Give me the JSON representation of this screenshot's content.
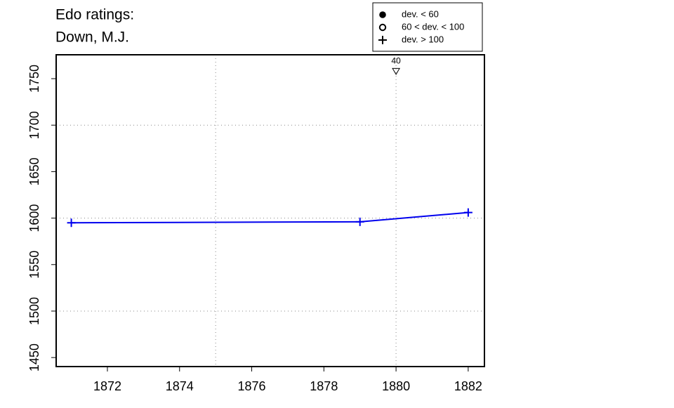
{
  "chart_data": {
    "type": "line",
    "title": "Edo ratings:",
    "subtitle": "Down, M.J.",
    "x": [
      1871,
      1879,
      1882
    ],
    "series": [
      {
        "color": "#0000ee",
        "marker": "plus",
        "values": [
          1595,
          1596,
          1606
        ]
      }
    ],
    "xlim": [
      1870.58,
      1882.45
    ],
    "ylim": [
      1440.3,
      1775.7
    ],
    "xticks": [
      1872,
      1874,
      1876,
      1878,
      1880,
      1882
    ],
    "yticks": [
      1450,
      1500,
      1550,
      1600,
      1650,
      1700,
      1750
    ],
    "xgrid": [
      1875,
      1880
    ],
    "ygrid": [
      1500,
      1600,
      1700
    ],
    "annotations": [
      {
        "x": 1880,
        "y": 1758,
        "label": "40",
        "marker": "triangle-down"
      }
    ],
    "legend": {
      "position": "top-right",
      "entries": [
        {
          "label": "dev. < 60",
          "marker": "dot"
        },
        {
          "label": "60 < dev. < 100",
          "marker": "circle"
        },
        {
          "label": "dev. > 100",
          "marker": "plus"
        }
      ]
    }
  }
}
